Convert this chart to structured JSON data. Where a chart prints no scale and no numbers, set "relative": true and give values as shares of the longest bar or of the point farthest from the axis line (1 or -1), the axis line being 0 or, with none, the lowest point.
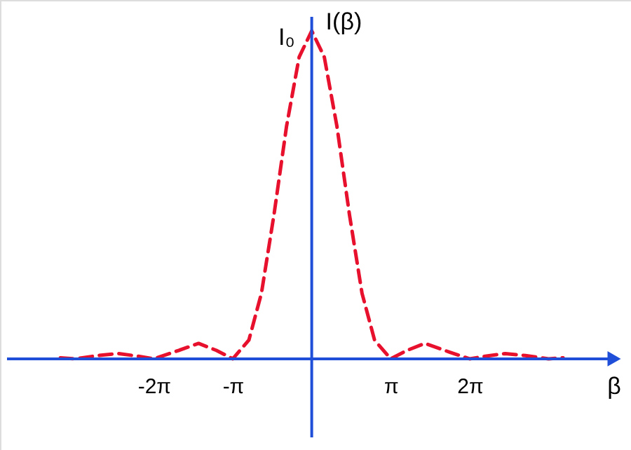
{
  "chart_data": {
    "type": "line",
    "xlabel": "β",
    "ylabel": "I(β)",
    "relative": true,
    "x": [
      -10.0,
      -9.42,
      -8.5,
      -7.7,
      -7.0,
      -6.28,
      -5.5,
      -4.5,
      -3.8,
      -3.14,
      -2.5,
      -2.0,
      -1.5,
      -1.0,
      -0.5,
      0,
      0.5,
      1.0,
      1.5,
      2.0,
      2.5,
      3.14,
      3.8,
      4.5,
      5.5,
      6.28,
      7.0,
      7.7,
      8.5,
      9.42,
      10.0
    ],
    "series": [
      {
        "color": "#e8112d",
        "values": [
          0.003,
          0,
          0.01,
          0.016,
          0.009,
          0,
          0.02,
          0.047,
          0.026,
          0,
          0.057,
          0.2,
          0.44,
          0.71,
          0.92,
          1,
          0.92,
          0.71,
          0.44,
          0.2,
          0.057,
          0,
          0.026,
          0.047,
          0.02,
          0,
          0.009,
          0.016,
          0.01,
          0,
          0.003
        ]
      }
    ],
    "xlim": [
      -12.4,
      12.7
    ],
    "xticks": [
      {
        "value": -6.283,
        "label": "-2π"
      },
      {
        "value": -3.1416,
        "label": "-π"
      },
      {
        "value": 3.1416,
        "label": "π"
      },
      {
        "value": 6.283,
        "label": "2π"
      }
    ],
    "line_style": "dashed",
    "marker": "none",
    "grid": false,
    "ref_lines": [
      {
        "axis": "x",
        "value": 0,
        "color": "#1f4fd8"
      }
    ],
    "tick_labels": "x",
    "annotations": [
      {
        "text": "I₀",
        "x": 0,
        "y": 1
      }
    ]
  }
}
